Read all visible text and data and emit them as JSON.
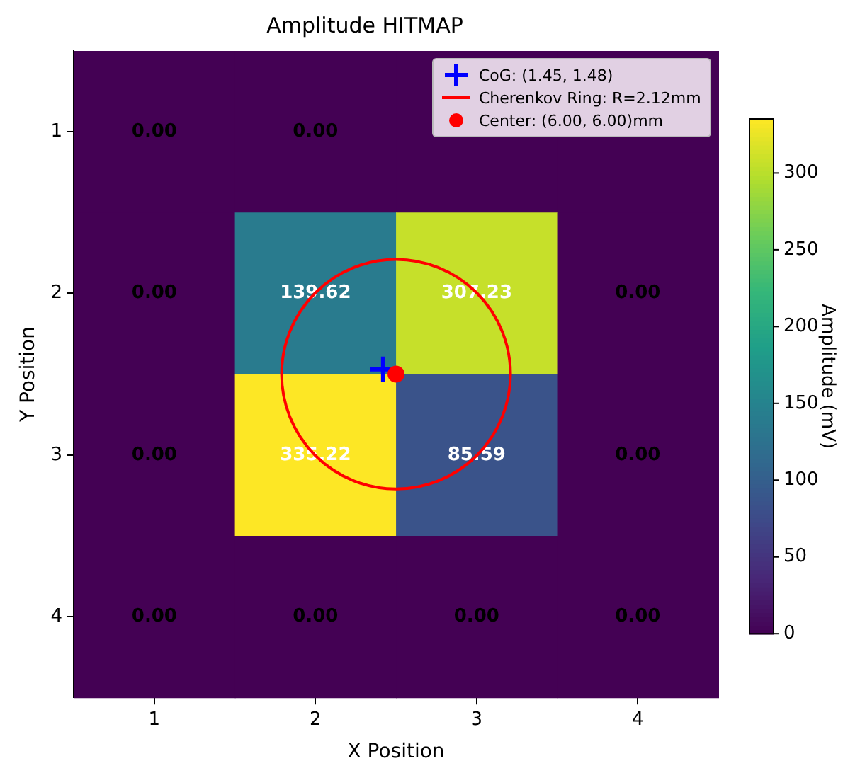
{
  "chart_data": {
    "type": "heatmap",
    "title": "Amplitude HITMAP",
    "xlabel": "X Position",
    "ylabel": "Y Position",
    "clabel": "Amplitude (mV)",
    "categories": [
      "1",
      "2",
      "3",
      "4"
    ],
    "y_categories": [
      "1",
      "2",
      "3",
      "4"
    ],
    "cells": [
      [
        0,
        0,
        0,
        0
      ],
      [
        0,
        139.62,
        307.23,
        0
      ],
      [
        0,
        335.22,
        85.59,
        0
      ],
      [
        0,
        0,
        0,
        0
      ]
    ],
    "cell_labels": [
      [
        "0.00",
        "0.00",
        null,
        null
      ],
      [
        "0.00",
        "139.62",
        "307.23",
        "0.00"
      ],
      [
        "0.00",
        "335.22",
        "85.59",
        "0.00"
      ],
      [
        "0.00",
        "0.00",
        "0.00",
        "0.00"
      ]
    ],
    "clim": [
      0,
      335.22
    ],
    "cticks": [
      0,
      50,
      100,
      150,
      200,
      250,
      300
    ],
    "annotations": [
      "CoG: (1.45, 1.48)",
      "Cherenkov Ring: R=2.12mm",
      "Center: (6.00, 6.00)mm"
    ]
  }
}
